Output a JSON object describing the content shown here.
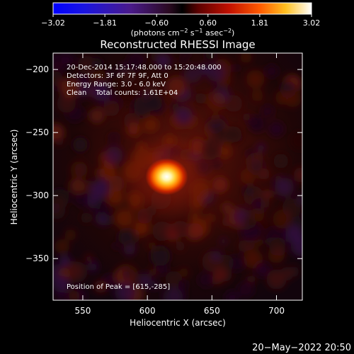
{
  "chart_data": {
    "type": "heatmap",
    "title": "Reconstructed RHESSI Image",
    "xlabel": "Heliocentric X (arcsec)",
    "ylabel": "Heliocentric Y (arcsec)",
    "xlim": [
      527,
      720
    ],
    "ylim": [
      -383,
      -187
    ],
    "x_ticks": [
      550,
      600,
      650,
      700
    ],
    "y_ticks": [
      -200,
      -250,
      -300,
      -350
    ],
    "x_tick_labels": [
      "550",
      "600",
      "650",
      "700"
    ],
    "y_tick_labels": [
      "−200",
      "−250",
      "−300",
      "−350"
    ],
    "peak": {
      "x": 615,
      "y": -285
    },
    "colorbar": {
      "min": -3.02,
      "max": 3.02,
      "ticks": [
        -3.02,
        -1.81,
        -0.6,
        0.6,
        1.81,
        3.02
      ],
      "tick_labels": [
        "−3.02",
        "−1.81",
        "−0.60",
        "0.60",
        "1.81",
        "3.02"
      ],
      "unit_label": "(photons cm",
      "unit_sup1": "−2",
      "unit_mid": " s",
      "unit_sup2": "−1",
      "unit_mid2": " asec",
      "unit_sup3": "−2",
      "unit_end": ")"
    },
    "annotations": [
      "20-Dec-2014 15:17:48.000 to 15:20:48.000",
      "Detectors: 3F 6F 7F 9F, Att 0",
      "Energy Range: 3.0 - 6.0 keV",
      "Clean    Total counts: 1.61E+04"
    ],
    "peak_label": "Position of Peak = [615,-285]",
    "grid": false
  },
  "footer": {
    "timestamp": "20−May−2022 20:50"
  }
}
